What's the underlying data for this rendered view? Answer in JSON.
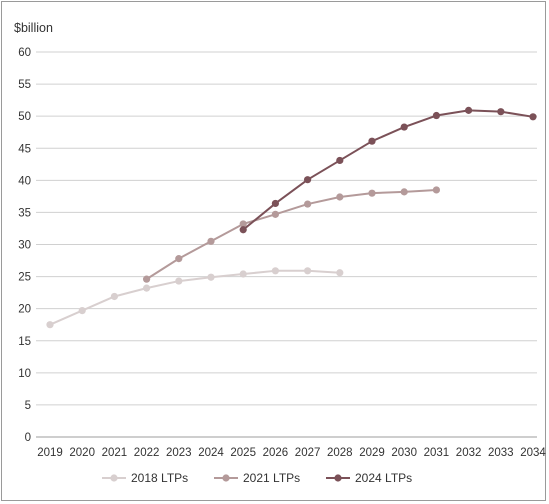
{
  "chart_data": {
    "type": "line",
    "ylabel": "$billion",
    "ylim": [
      0,
      60
    ],
    "yticks": [
      0,
      5,
      10,
      15,
      20,
      25,
      30,
      35,
      40,
      45,
      50,
      55,
      60
    ],
    "categories": [
      "2019",
      "2020",
      "2021",
      "2022",
      "2023",
      "2024",
      "2025",
      "2026",
      "2027",
      "2028",
      "2029",
      "2030",
      "2031",
      "2032",
      "2033",
      "2034"
    ],
    "grid": true,
    "legend_position": "bottom",
    "series": [
      {
        "name": "2018 LTPs",
        "color": "#d8cfcf",
        "x": [
          "2019",
          "2020",
          "2021",
          "2022",
          "2023",
          "2024",
          "2025",
          "2026",
          "2027",
          "2028"
        ],
        "values": [
          17.5,
          19.7,
          21.9,
          23.2,
          24.3,
          24.9,
          25.4,
          25.9,
          25.9,
          25.6
        ]
      },
      {
        "name": "2021 LTPs",
        "color": "#b49a9a",
        "x": [
          "2022",
          "2023",
          "2024",
          "2025",
          "2026",
          "2027",
          "2028",
          "2029",
          "2030",
          "2031"
        ],
        "values": [
          24.6,
          27.8,
          30.5,
          33.2,
          34.7,
          36.3,
          37.4,
          38.0,
          38.2,
          38.5
        ]
      },
      {
        "name": "2024 LTPs",
        "color": "#7b5158",
        "x": [
          "2025",
          "2026",
          "2027",
          "2028",
          "2029",
          "2030",
          "2031",
          "2032",
          "2033",
          "2034"
        ],
        "values": [
          32.3,
          36.4,
          40.1,
          43.1,
          46.1,
          48.3,
          50.1,
          50.9,
          50.7,
          49.9
        ]
      }
    ]
  }
}
